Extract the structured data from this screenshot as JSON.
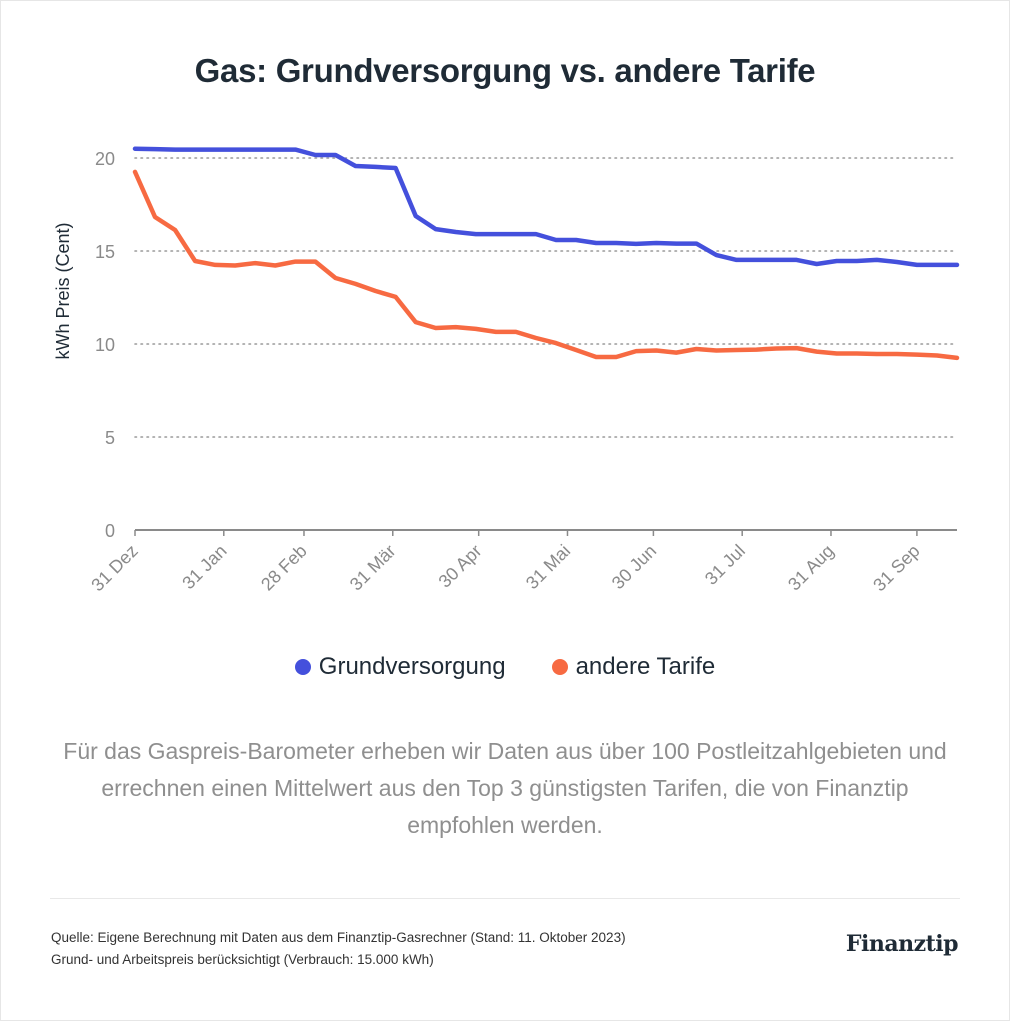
{
  "title": "Gas: Grundversorgung vs. andere Tarife",
  "legend": [
    {
      "label": "Grundversorgung",
      "color": "#4450dc"
    },
    {
      "label": "andere Tarife",
      "color": "#f76a42"
    }
  ],
  "description": "Für das Gaspreis-Barometer erheben wir Daten aus über 100 Postleitzahlgebieten und errechnen einen Mittelwert aus den Top 3 günstigsten Tarifen, die von Finanztip empfohlen werden.",
  "footer": {
    "source_line": "Quelle: Eigene Berechnung mit Daten aus dem Finanztip-Gasrechner (Stand: 11. Oktober 2023)",
    "note_line": "Grund- und Arbeitspreis berücksichtigt (Verbrauch: 15.000 kWh)",
    "logo": "Finanztip"
  },
  "chart_data": {
    "type": "line",
    "title": "Gas: Grundversorgung vs. andere Tarife",
    "xlabel": "",
    "ylabel": "kWh Preis (Cent)",
    "ylim": [
      0,
      20
    ],
    "yticks": [
      0,
      5,
      10,
      15,
      20
    ],
    "grid": "horizontal dotted",
    "legend_position": "bottom",
    "x_tick_labels": [
      "31 Dez",
      "31 Jan",
      "28 Feb",
      "31 Mär",
      "30 Apr",
      "31 Mai",
      "30 Jun",
      "31 Jul",
      "31 Aug",
      "31 Sep"
    ],
    "x_tick_days": [
      0,
      31,
      59,
      90,
      120,
      151,
      181,
      212,
      243,
      273
    ],
    "x_days": [
      0,
      7,
      14,
      21,
      28,
      35,
      42,
      49,
      56,
      63,
      70,
      77,
      84,
      91,
      98,
      105,
      112,
      119,
      126,
      133,
      140,
      147,
      154,
      161,
      168,
      175,
      182,
      189,
      196,
      203,
      210,
      217,
      224,
      231,
      238,
      245,
      252,
      259,
      266,
      273,
      280,
      287
    ],
    "series": [
      {
        "name": "Grundversorgung",
        "color": "#4450dc",
        "values": [
          20.5,
          20.48,
          20.45,
          20.45,
          20.45,
          20.45,
          20.45,
          20.45,
          20.45,
          20.16,
          20.16,
          19.57,
          19.52,
          19.46,
          16.88,
          16.18,
          16.02,
          15.91,
          15.91,
          15.91,
          15.91,
          15.59,
          15.59,
          15.43,
          15.43,
          15.38,
          15.43,
          15.4,
          15.4,
          14.78,
          14.52,
          14.52,
          14.52,
          14.52,
          14.3,
          14.46,
          14.46,
          14.52,
          14.41,
          14.25,
          14.25,
          14.25
        ]
      },
      {
        "name": "andere Tarife",
        "color": "#f76a42",
        "values": [
          19.25,
          16.83,
          16.13,
          14.46,
          14.25,
          14.22,
          14.35,
          14.22,
          14.43,
          14.43,
          13.55,
          13.23,
          12.85,
          12.53,
          11.18,
          10.86,
          10.91,
          10.81,
          10.65,
          10.65,
          10.32,
          10.05,
          9.68,
          9.3,
          9.3,
          9.62,
          9.65,
          9.54,
          9.73,
          9.65,
          9.68,
          9.7,
          9.76,
          9.78,
          9.59,
          9.49,
          9.49,
          9.46,
          9.46,
          9.43,
          9.38,
          9.25
        ]
      }
    ]
  }
}
